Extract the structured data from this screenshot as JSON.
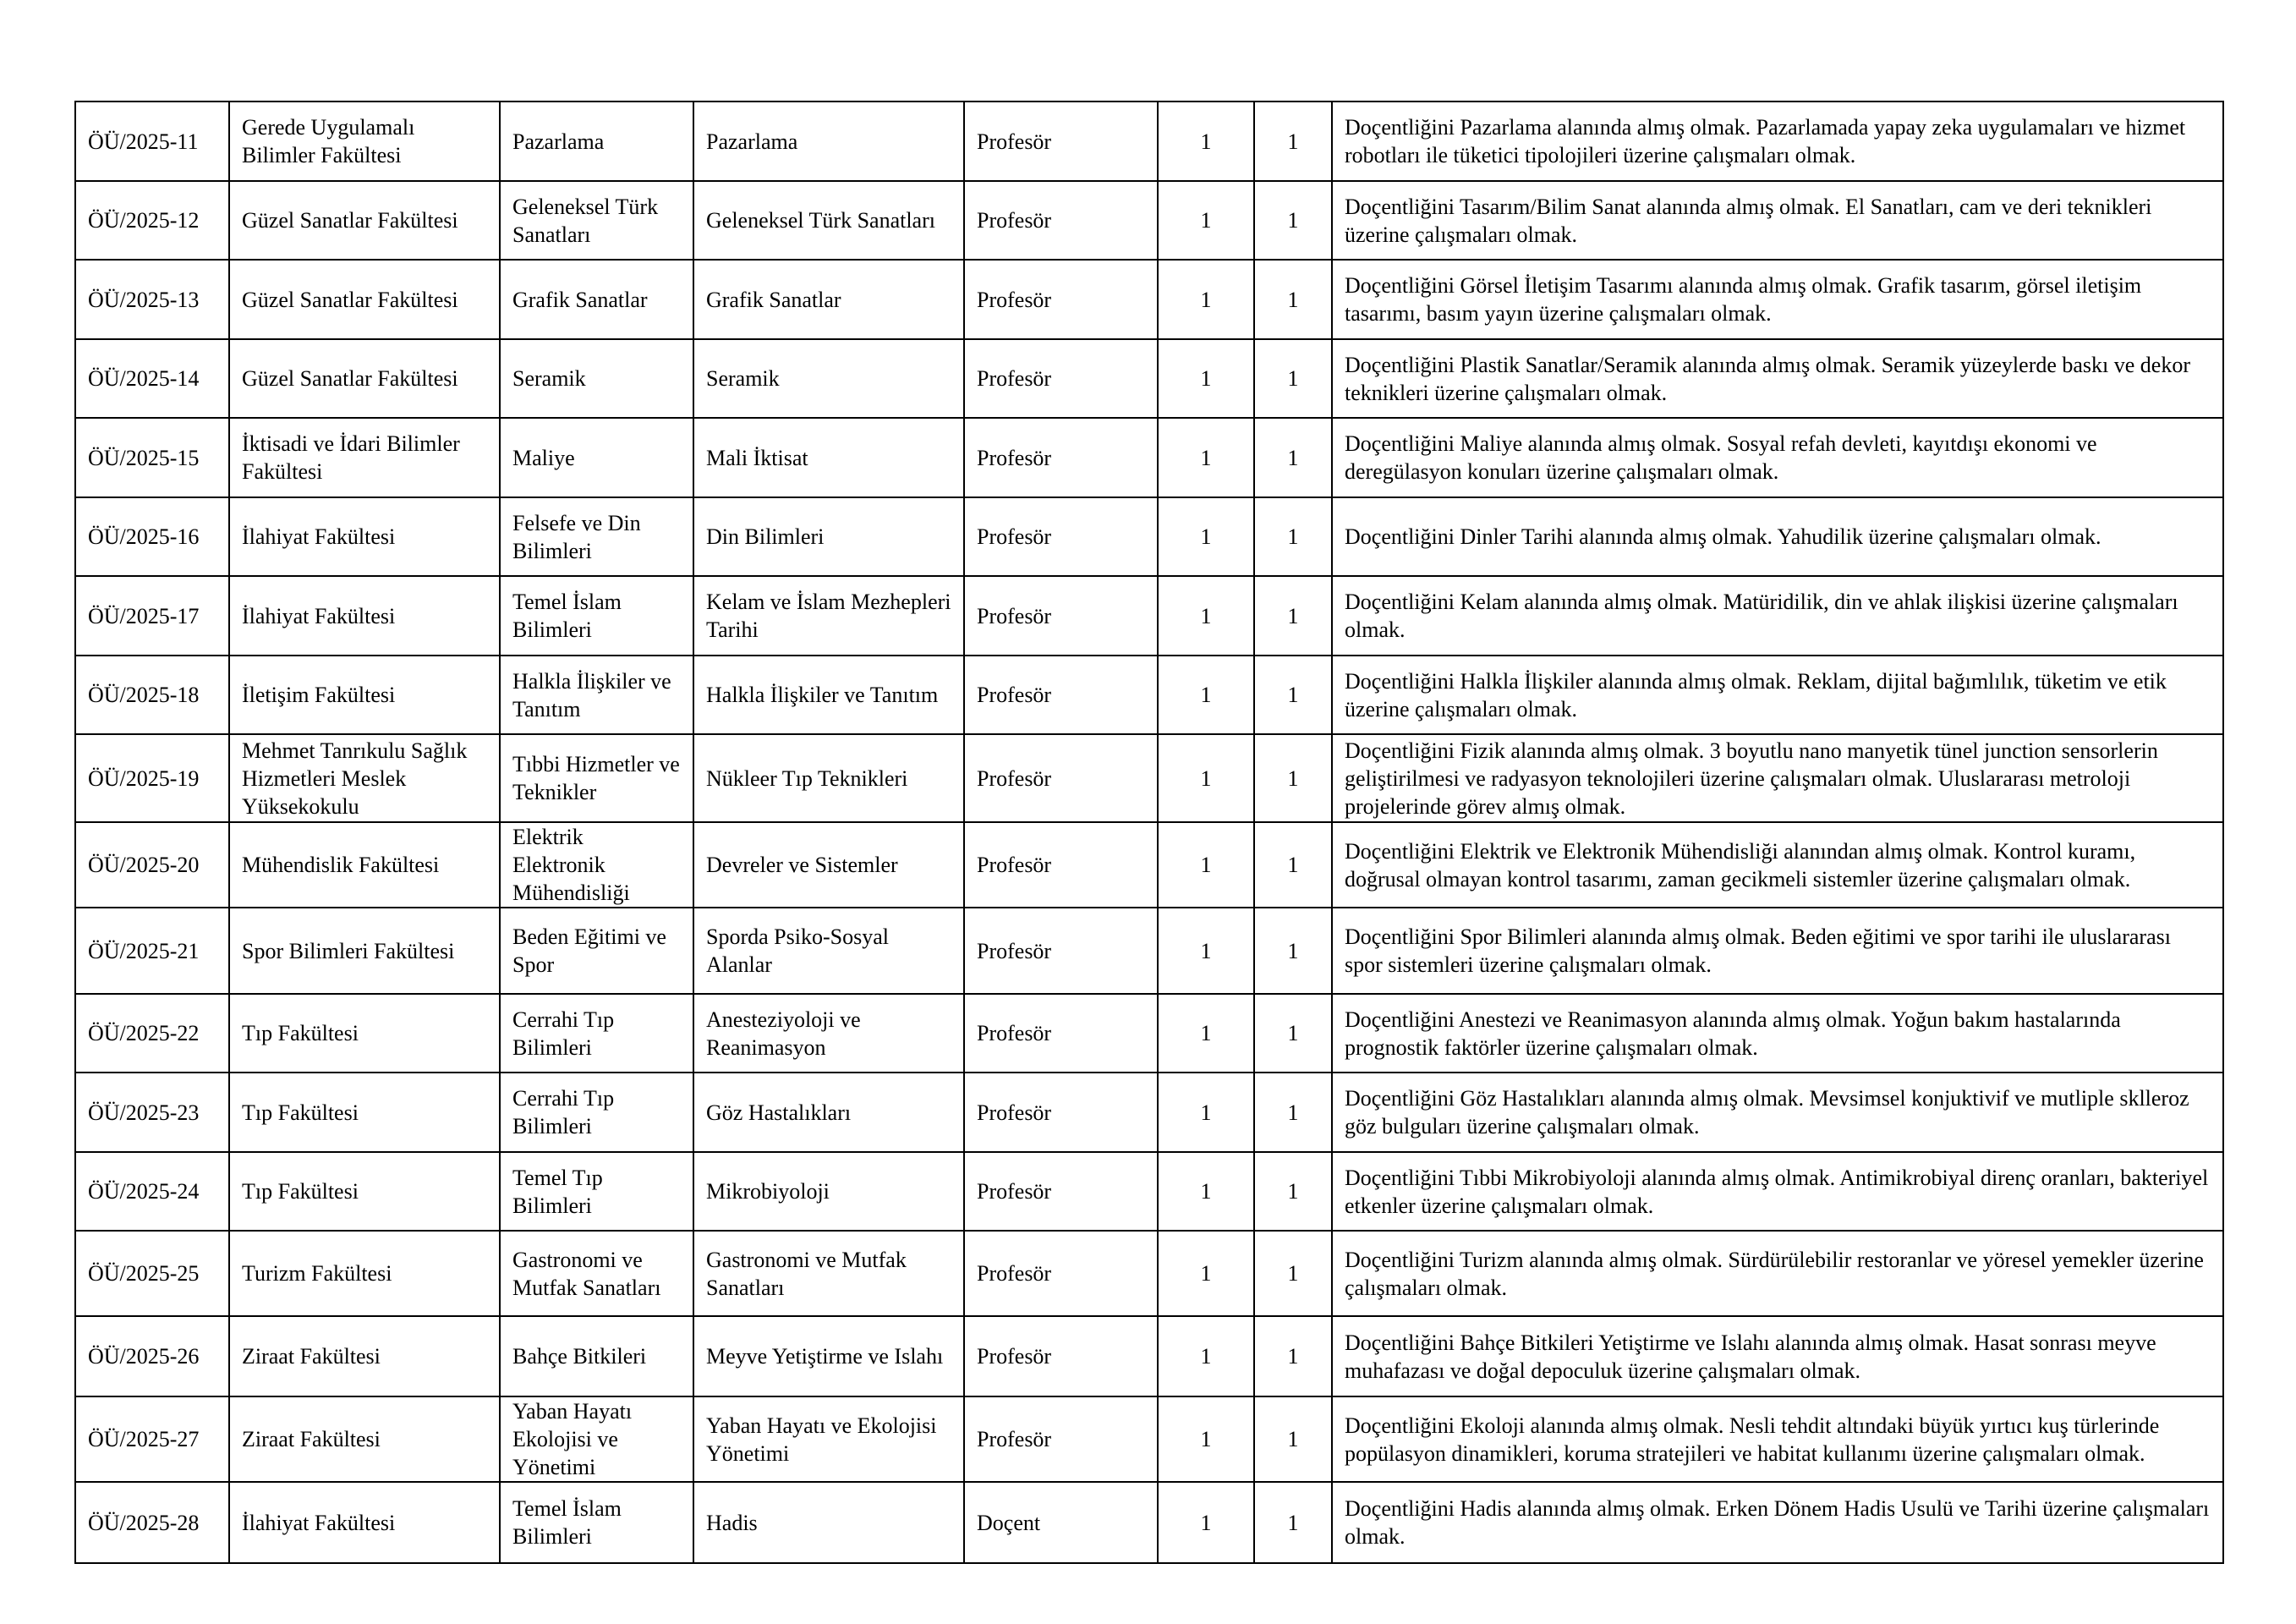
{
  "rows": [
    {
      "code": "ÖÜ/2025-11",
      "faculty": "Gerede Uygulamalı Bilimler Fakültesi",
      "department": "Pazarlama",
      "field": "Pazarlama",
      "title": "Profesör",
      "degree": "1",
      "count": "1",
      "requirements": "Doçentliğini Pazarlama alanında almış olmak. Pazarlamada yapay zeka uygulamaları ve hizmet robotları ile tüketici tipolojileri üzerine çalışmaları olmak."
    },
    {
      "code": "ÖÜ/2025-12",
      "faculty": "Güzel Sanatlar Fakültesi",
      "department": "Geleneksel Türk Sanatları",
      "field": "Geleneksel Türk Sanatları",
      "title": "Profesör",
      "degree": "1",
      "count": "1",
      "requirements": "Doçentliğini Tasarım/Bilim Sanat alanında almış olmak.  El Sanatları, cam ve deri teknikleri üzerine çalışmaları olmak."
    },
    {
      "code": "ÖÜ/2025-13",
      "faculty": "Güzel Sanatlar Fakültesi",
      "department": "Grafik Sanatlar",
      "field": "Grafik Sanatlar",
      "title": "Profesör",
      "degree": "1",
      "count": "1",
      "requirements": "Doçentliğini Görsel İletişim Tasarımı alanında almış olmak. Grafik tasarım, görsel iletişim tasarımı, basım yayın üzerine çalışmaları olmak."
    },
    {
      "code": "ÖÜ/2025-14",
      "faculty": "Güzel Sanatlar Fakültesi",
      "department": "Seramik",
      "field": "Seramik",
      "title": "Profesör",
      "degree": "1",
      "count": "1",
      "requirements": "Doçentliğini Plastik Sanatlar/Seramik alanında almış olmak. Seramik yüzeylerde baskı ve dekor teknikleri üzerine çalışmaları olmak."
    },
    {
      "code": "ÖÜ/2025-15",
      "faculty": "İktisadi ve İdari Bilimler Fakültesi",
      "department": "Maliye",
      "field": "Mali İktisat",
      "title": "Profesör",
      "degree": "1",
      "count": "1",
      "requirements": "Doçentliğini Maliye alanında almış olmak. Sosyal refah devleti, kayıtdışı ekonomi ve deregülasyon konuları üzerine çalışmaları olmak."
    },
    {
      "code": "ÖÜ/2025-16",
      "faculty": "İlahiyat Fakültesi",
      "department": "Felsefe ve Din Bilimleri",
      "field": "Din Bilimleri",
      "title": "Profesör",
      "degree": "1",
      "count": "1",
      "requirements": "Doçentliğini Dinler Tarihi alanında almış olmak.  Yahudilik üzerine çalışmaları olmak."
    },
    {
      "code": "ÖÜ/2025-17",
      "faculty": "İlahiyat Fakültesi",
      "department": "Temel İslam Bilimleri",
      "field": "Kelam ve İslam Mezhepleri Tarihi",
      "title": "Profesör",
      "degree": "1",
      "count": "1",
      "requirements": "Doçentliğini Kelam alanında almış olmak. Matüridilik, din ve ahlak ilişkisi üzerine çalışmaları olmak."
    },
    {
      "code": "ÖÜ/2025-18",
      "faculty": "İletişim Fakültesi",
      "department": "Halkla İlişkiler ve Tanıtım",
      "field": "Halkla İlişkiler ve Tanıtım",
      "title": "Profesör",
      "degree": "1",
      "count": "1",
      "requirements": "Doçentliğini Halkla İlişkiler alanında almış olmak. Reklam, dijital bağımlılık, tüketim ve etik üzerine çalışmaları olmak."
    },
    {
      "code": "ÖÜ/2025-19",
      "faculty": "Mehmet Tanrıkulu Sağlık Hizmetleri Meslek Yüksekokulu",
      "department": "Tıbbi Hizmetler ve Teknikler",
      "field": "Nükleer Tıp Teknikleri",
      "title": "Profesör",
      "degree": "1",
      "count": "1",
      "requirements": "Doçentliğini Fizik alanında almış olmak.  3 boyutlu nano manyetik tünel junction sensorlerin geliştirilmesi ve radyasyon teknolojileri üzerine çalışmaları olmak. Uluslararası metroloji projelerinde görev almış olmak."
    },
    {
      "code": "ÖÜ/2025-20",
      "faculty": "Mühendislik Fakültesi",
      "department": "Elektrik Elektronik Mühendisliği",
      "field": "Devreler ve Sistemler",
      "title": "Profesör",
      "degree": "1",
      "count": "1",
      "requirements": "Doçentliğini Elektrik ve Elektronik Mühendisliği alanından almış olmak. Kontrol kuramı, doğrusal olmayan kontrol tasarımı, zaman gecikmeli sistemler üzerine çalışmaları olmak."
    },
    {
      "code": "ÖÜ/2025-21",
      "faculty": "Spor Bilimleri Fakültesi",
      "department": "Beden Eğitimi ve Spor",
      "field": "Sporda Psiko-Sosyal Alanlar",
      "title": "Profesör",
      "degree": "1",
      "count": "1",
      "requirements": "Doçentliğini Spor Bilimleri alanında almış olmak. Beden eğitimi ve spor tarihi ile uluslararası spor sistemleri üzerine çalışmaları olmak."
    },
    {
      "code": "ÖÜ/2025-22",
      "faculty": "Tıp Fakültesi",
      "department": "Cerrahi Tıp Bilimleri",
      "field": "Anesteziyoloji ve Reanimasyon",
      "title": "Profesör",
      "degree": "1",
      "count": "1",
      "requirements": "Doçentliğini Anestezi ve Reanimasyon alanında almış olmak.  Yoğun bakım hastalarında prognostik faktörler üzerine çalışmaları olmak."
    },
    {
      "code": "ÖÜ/2025-23",
      "faculty": "Tıp Fakültesi",
      "department": "Cerrahi Tıp Bilimleri",
      "field": "Göz Hastalıkları",
      "title": "Profesör",
      "degree": "1",
      "count": "1",
      "requirements": "Doçentliğini Göz Hastalıkları alanında almış olmak. Mevsimsel konjuktivif ve mutliple sklleroz göz bulguları üzerine çalışmaları olmak."
    },
    {
      "code": "ÖÜ/2025-24",
      "faculty": "Tıp Fakültesi",
      "department": "Temel Tıp Bilimleri",
      "field": "Mikrobiyoloji",
      "title": "Profesör",
      "degree": "1",
      "count": "1",
      "requirements": "Doçentliğini Tıbbi Mikrobiyoloji alanında almış olmak. Antimikrobiyal direnç oranları, bakteriyel etkenler üzerine çalışmaları olmak."
    },
    {
      "code": "ÖÜ/2025-25",
      "faculty": "Turizm Fakültesi",
      "department": "Gastronomi ve Mutfak Sanatları",
      "field": "Gastronomi ve Mutfak Sanatları",
      "title": "Profesör",
      "degree": "1",
      "count": "1",
      "requirements": "Doçentliğini Turizm alanında almış olmak. Sürdürülebilir restoranlar ve yöresel yemekler üzerine çalışmaları olmak."
    },
    {
      "code": "ÖÜ/2025-26",
      "faculty": "Ziraat Fakültesi",
      "department": "Bahçe Bitkileri",
      "field": "Meyve Yetiştirme ve Islahı",
      "title": "Profesör",
      "degree": "1",
      "count": "1",
      "requirements": "Doçentliğini Bahçe Bitkileri Yetiştirme ve Islahı alanında almış olmak. Hasat sonrası meyve muhafazası ve doğal depoculuk üzerine çalışmaları olmak."
    },
    {
      "code": "ÖÜ/2025-27",
      "faculty": "Ziraat Fakültesi",
      "department": "Yaban Hayatı Ekolojisi ve Yönetimi",
      "field": "Yaban Hayatı ve Ekolojisi Yönetimi",
      "title": "Profesör",
      "degree": "1",
      "count": "1",
      "requirements": "Doçentliğini Ekoloji alanında almış olmak. Nesli tehdit altındaki büyük yırtıcı kuş türlerinde popülasyon dinamikleri, koruma stratejileri ve habitat kullanımı üzerine çalışmaları olmak."
    },
    {
      "code": "ÖÜ/2025-28",
      "faculty": "İlahiyat Fakültesi",
      "department": "Temel İslam Bilimleri",
      "field": "Hadis",
      "title": "Doçent",
      "degree": "1",
      "count": "1",
      "requirements": "Doçentliğini Hadis alanında almış olmak. Erken Dönem Hadis Usulü ve Tarihi üzerine çalışmaları olmak."
    }
  ]
}
